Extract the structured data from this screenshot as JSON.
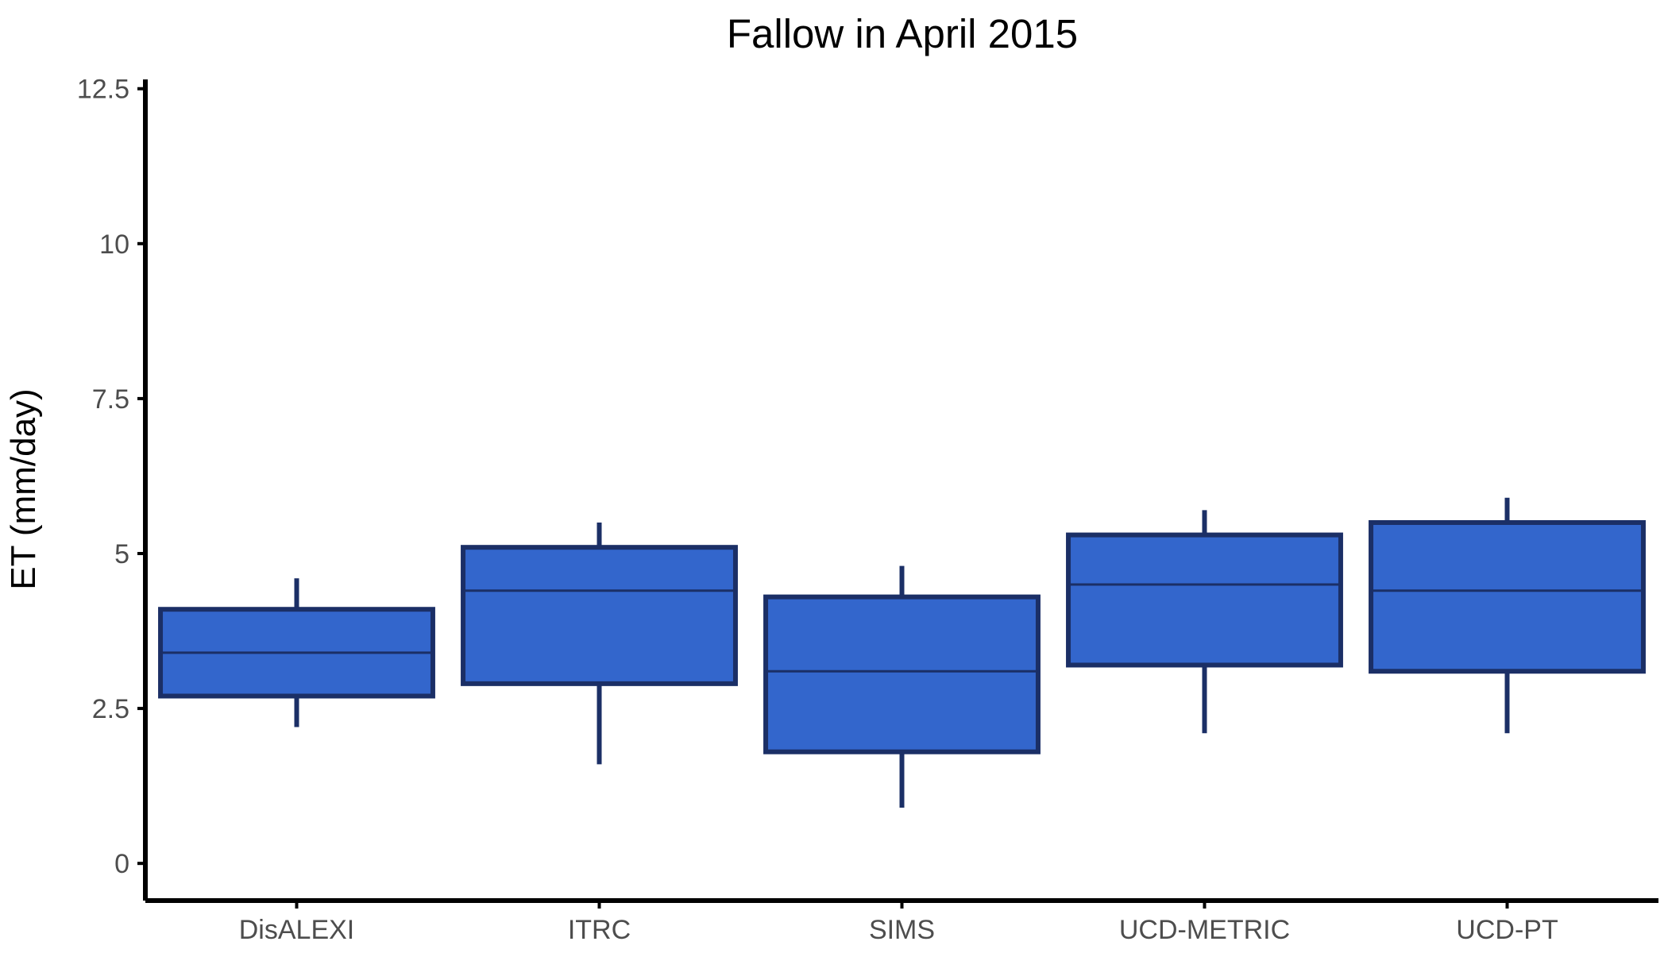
{
  "chart_data": {
    "type": "boxplot",
    "title": "Fallow in April 2015",
    "xlabel": "",
    "ylabel": "ET (mm/day)",
    "ylim": [
      -0.6,
      12.65
    ],
    "yticks": [
      0,
      2.5,
      5,
      7.5,
      10,
      12.5
    ],
    "ytick_labels": [
      "0",
      "2.5",
      "5",
      "7.5",
      "10",
      "12.5"
    ],
    "categories": [
      "DisALEXI",
      "ITRC",
      "SIMS",
      "UCD-METRIC",
      "UCD-PT"
    ],
    "boxes": [
      {
        "category": "DisALEXI",
        "whisker_low": 2.2,
        "q1": 2.7,
        "median": 3.4,
        "q3": 4.1,
        "whisker_high": 4.6
      },
      {
        "category": "ITRC",
        "whisker_low": 1.6,
        "q1": 2.9,
        "median": 4.4,
        "q3": 5.1,
        "whisker_high": 5.5
      },
      {
        "category": "SIMS",
        "whisker_low": 0.9,
        "q1": 1.8,
        "median": 3.1,
        "q3": 4.3,
        "whisker_high": 4.8
      },
      {
        "category": "UCD-METRIC",
        "whisker_low": 2.1,
        "q1": 3.2,
        "median": 4.5,
        "q3": 5.3,
        "whisker_high": 5.7
      },
      {
        "category": "UCD-PT",
        "whisker_low": 2.1,
        "q1": 3.1,
        "median": 4.4,
        "q3": 5.5,
        "whisker_high": 5.9
      }
    ],
    "grid": false,
    "legend": "none",
    "colors": {
      "box_fill": "#3366cc",
      "box_stroke": "#1b2f66",
      "axis": "#000000",
      "tick_label": "#4d4d4d",
      "title": "#000000"
    }
  }
}
